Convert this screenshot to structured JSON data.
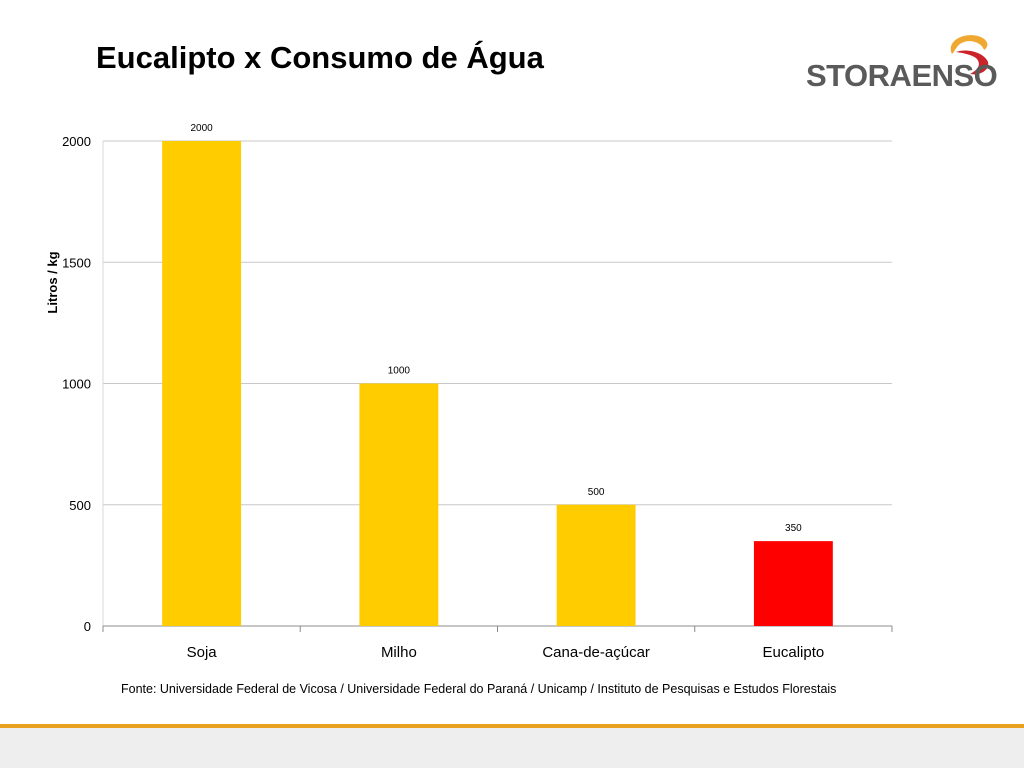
{
  "slide": {
    "title": "Eucalipto x Consumo de Água",
    "logo_text": "STORAENSO",
    "source": "Fonte: Universidade Federal de Vicosa / Universidade Federal do Paraná / Unicamp / Instituto de Pesquisas e Estudos Florestais"
  },
  "colors": {
    "bar_default": "#ffcc00",
    "bar_highlight": "#ff0000",
    "accent_rule": "#e8a020",
    "logo_orange": "#f0a830",
    "logo_red": "#cc2229",
    "logo_gray": "#5a5a5a"
  },
  "chart_data": {
    "type": "bar",
    "categories": [
      "Soja",
      "Milho",
      "Cana-de-açúcar",
      "Eucalipto"
    ],
    "values": [
      2000,
      1000,
      500,
      350
    ],
    "data_labels": [
      "2000",
      "1000",
      "500",
      "350"
    ],
    "highlight_category": "Eucalipto",
    "title": "",
    "xlabel": "",
    "ylabel": "Litros / kg",
    "ylim": [
      0,
      2000
    ],
    "yticks": [
      0,
      500,
      1000,
      1500,
      2000
    ],
    "ytick_labels": [
      "0",
      "500",
      "1000",
      "1500",
      "2000"
    ],
    "grid": true,
    "legend": "none"
  }
}
